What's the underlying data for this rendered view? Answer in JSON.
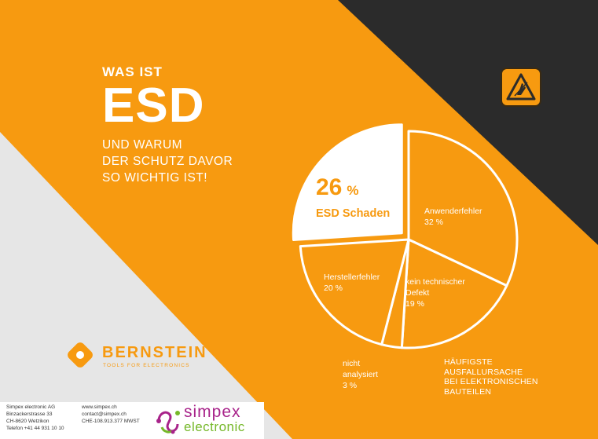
{
  "headline": {
    "kicker": "WAS IST",
    "big": "ESD",
    "sub_lines": [
      "UND WARUM",
      "DER SCHUTZ DAVOR",
      "SO WICHTIG IST!"
    ]
  },
  "colors": {
    "orange": "#f79a10",
    "dark": "#2b2b2b",
    "light_gray": "#e6e6e6",
    "white": "#ffffff",
    "simpex_magenta": "#a8238a",
    "simpex_green": "#76b82a"
  },
  "chart_data": {
    "type": "pie",
    "slices": [
      {
        "label": "ESD Schaden",
        "value": 26,
        "value_text": "26",
        "unit": "%",
        "exploded": true,
        "fill": "white"
      },
      {
        "label": "Anwenderfehler",
        "value": 32,
        "value_text": "32 %"
      },
      {
        "label": "kein technischer Defekt",
        "label_lines": [
          "kein technischer",
          "Defekt"
        ],
        "value": 19,
        "value_text": "19 %"
      },
      {
        "label": "nicht analysiert",
        "label_lines": [
          "nicht",
          "analysiert"
        ],
        "value": 3,
        "value_text": "3 %"
      },
      {
        "label": "Herstellerfehler",
        "value": 20,
        "value_text": "20 %"
      }
    ],
    "caption_lines": [
      "HÄUFIGSTE",
      "AUSFALLURSACHE",
      "BEI ELEKTRONISCHEN",
      "BAUTEILEN"
    ]
  },
  "icons": {
    "esd_badge": "esd-warning-hand-icon",
    "brand_mark": "bernstein-logo-icon",
    "simpex_mark": "simpex-logo-icon"
  },
  "brand": {
    "name": "BERNSTEIN",
    "tagline": "TOOLS FOR ELECTRONICS"
  },
  "footer": {
    "address_1": [
      "Simpex electronic AG",
      "Binzackerstrasse 33",
      "CH-8620 Wetzikon",
      "Telefon +41 44 931 10 10"
    ],
    "address_2": [
      "www.simpex.ch",
      "contact@simpex.ch",
      "CHE-108.913.377 MWST"
    ],
    "simpex_name": "simpex",
    "simpex_sub": "electronic"
  }
}
